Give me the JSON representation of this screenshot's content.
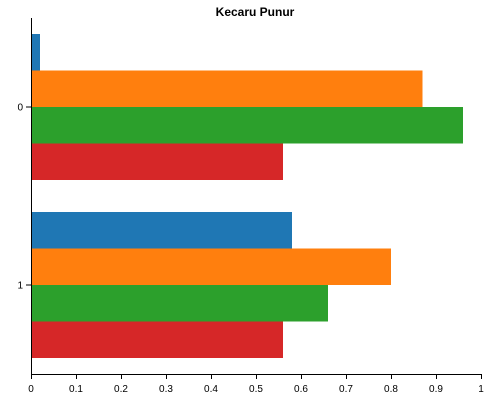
{
  "chart_data": {
    "type": "bar",
    "orientation": "horizontal",
    "title": "Kecaru Punur",
    "xlabel": "",
    "ylabel": "",
    "categories": [
      "0",
      "1"
    ],
    "series": [
      {
        "color": "#1f77b4",
        "values": [
          0.02,
          0.58
        ]
      },
      {
        "color": "#ff7f0e",
        "values": [
          0.87,
          0.8
        ]
      },
      {
        "color": "#2ca02c",
        "values": [
          0.96,
          0.66
        ]
      },
      {
        "color": "#d62728",
        "values": [
          0.56,
          0.56
        ]
      }
    ],
    "xlim": [
      0,
      1.0
    ],
    "xticks": [
      "0",
      "0.1",
      "0.2",
      "0.3",
      "0.4",
      "0.5",
      "0.6",
      "0.7",
      "0.8",
      "0.9",
      "1"
    ],
    "xtick_values": [
      0,
      0.1,
      0.2,
      0.3,
      0.4,
      0.5,
      0.6,
      0.7,
      0.8,
      0.9,
      1.0
    ],
    "grid": false,
    "legend": "none"
  }
}
